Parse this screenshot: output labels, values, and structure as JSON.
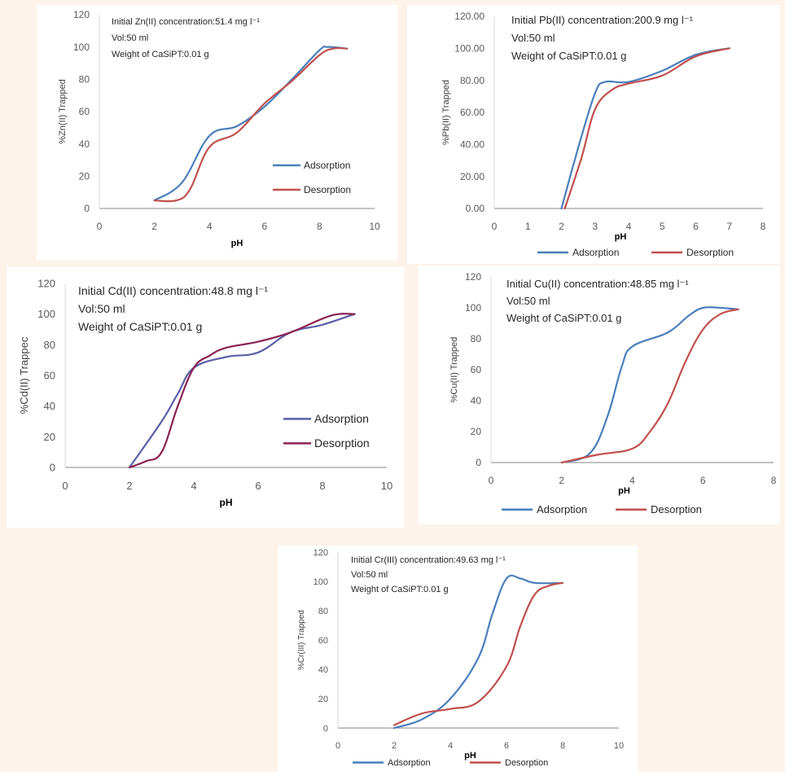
{
  "colors": {
    "background": "#fdf3ea",
    "panel": "#ffffff",
    "adsorption_blue": "#4a7ebb",
    "desorption_red": "#c0504d",
    "adsorption_purple": "#5b5ea6",
    "desorption_maroon": "#8b2252"
  },
  "chart_data": [
    {
      "type": "line",
      "notes": [
        "Initial Zn(II) concentration:51.4 mg l⁻¹",
        "Vol:50 ml",
        "Weight of CaSiPT:0.01 g"
      ],
      "xlabel": "pH",
      "ylabel": "%Zn(II) Trapped",
      "xlim": [
        0,
        10
      ],
      "ylim": [
        0,
        120
      ],
      "xticks": [
        "0",
        "2",
        "4",
        "6",
        "8",
        "10"
      ],
      "yticks": [
        "0",
        "20",
        "40",
        "60",
        "80",
        "100",
        "120"
      ],
      "grid": false,
      "legend_position": "inside-right",
      "series": [
        {
          "name": "Adsorption",
          "color": "#4a7ebb",
          "x": [
            2,
            3,
            4,
            5,
            6,
            7,
            8,
            8.3,
            9
          ],
          "y": [
            5,
            16,
            45,
            51,
            63,
            80,
            98,
            100,
            99
          ]
        },
        {
          "name": "Desorption",
          "color": "#c0504d",
          "x": [
            2,
            2.8,
            3.3,
            4,
            5,
            6,
            7,
            8,
            8.5,
            9
          ],
          "y": [
            5,
            5,
            12,
            38,
            47,
            65,
            79,
            95,
            99,
            99
          ]
        }
      ]
    },
    {
      "type": "line",
      "notes": [
        "Initial Pb(II) concentration:200.9 mg l⁻¹",
        "Vol:50 ml",
        "Weight of CaSiPT:0.01 g"
      ],
      "xlabel": "pH",
      "ylabel": "%Pb(II) Trapped",
      "xlim": [
        0,
        8
      ],
      "ylim": [
        0,
        120
      ],
      "xticks": [
        "0",
        "1",
        "2",
        "3",
        "4",
        "5",
        "6",
        "7",
        "8"
      ],
      "yticks": [
        "0.00",
        "20.00",
        "40.00",
        "60.00",
        "80.00",
        "100.00",
        "120.00"
      ],
      "grid": false,
      "legend_position": "bottom",
      "series": [
        {
          "name": "Adsorption",
          "color": "#4a7ebb",
          "x": [
            2,
            2.5,
            3,
            3.3,
            4,
            5,
            6,
            7
          ],
          "y": [
            0,
            38,
            72,
            79,
            79,
            86,
            96,
            100
          ]
        },
        {
          "name": "Desorption",
          "color": "#c0504d",
          "x": [
            2.1,
            2.6,
            3,
            3.5,
            4,
            5,
            6,
            7
          ],
          "y": [
            0,
            32,
            62,
            74,
            78,
            83,
            95,
            100
          ]
        }
      ]
    },
    {
      "type": "line",
      "notes": [
        "Initial Cd(II) concentration:48.8 mg l⁻¹",
        "Vol:50 ml",
        "Weight of CaSiPT:0.01 g"
      ],
      "xlabel": "pH",
      "ylabel": "%Cd(II) Trappec",
      "xlim": [
        0,
        10
      ],
      "ylim": [
        0,
        120
      ],
      "xticks": [
        "0",
        "2",
        "4",
        "6",
        "8",
        "10"
      ],
      "yticks": [
        "0",
        "20",
        "40",
        "60",
        "80",
        "100",
        "120"
      ],
      "grid": false,
      "legend_position": "inside-right",
      "series": [
        {
          "name": "Adsorption",
          "color": "#5b5ea6",
          "x": [
            2,
            3,
            3.5,
            4,
            5,
            6,
            7,
            8,
            9
          ],
          "y": [
            0,
            30,
            48,
            65,
            72,
            75,
            88,
            93,
            100
          ]
        },
        {
          "name": "Desorption",
          "color": "#8b2252",
          "x": [
            2,
            2.5,
            3,
            3.5,
            4,
            4.5,
            5,
            6,
            7,
            8,
            8.5,
            9
          ],
          "y": [
            0,
            4,
            10,
            40,
            65,
            73,
            78,
            82,
            88,
            97,
            100,
            100
          ]
        }
      ]
    },
    {
      "type": "line",
      "notes": [
        "Initial Cu(II) concentration:48.85 mg l⁻¹",
        "Vol:50 ml",
        "Weight of CaSiPT:0.01 g"
      ],
      "xlabel": "pH",
      "ylabel": "%Cu(II) Trapped",
      "xlim": [
        0,
        8
      ],
      "ylim": [
        0,
        120
      ],
      "xticks": [
        "0",
        "2",
        "4",
        "6",
        "8"
      ],
      "yticks": [
        "0",
        "20",
        "40",
        "60",
        "80",
        "100",
        "120"
      ],
      "grid": false,
      "legend_position": "bottom",
      "series": [
        {
          "name": "Adsorption",
          "color": "#4a7ebb",
          "x": [
            2,
            2.8,
            3.3,
            3.7,
            4,
            5,
            5.6,
            6,
            6.5,
            7
          ],
          "y": [
            0,
            6,
            30,
            62,
            75,
            84,
            95,
            100,
            100,
            99
          ]
        },
        {
          "name": "Desorption",
          "color": "#c0504d",
          "x": [
            2,
            3,
            4,
            4.5,
            5,
            5.5,
            6,
            6.5,
            7
          ],
          "y": [
            0,
            5,
            9,
            20,
            38,
            65,
            86,
            96,
            99
          ]
        }
      ]
    },
    {
      "type": "line",
      "notes": [
        "Initial Cr(III) concentration:49.63 mg l⁻¹",
        "Vol:50 ml",
        "Weight of CaSiPT:0.01 g"
      ],
      "xlabel": "pH",
      "ylabel": "%Cr(III) Trapped",
      "xlim": [
        0,
        10
      ],
      "ylim": [
        0,
        120
      ],
      "xticks": [
        "0",
        "2",
        "4",
        "6",
        "8",
        "10"
      ],
      "yticks": [
        "0",
        "20",
        "40",
        "60",
        "80",
        "100",
        "120"
      ],
      "grid": false,
      "legend_position": "bottom",
      "series": [
        {
          "name": "Adsorption",
          "color": "#4a7ebb",
          "x": [
            2,
            3,
            4,
            5,
            5.5,
            6,
            6.5,
            7,
            8
          ],
          "y": [
            0,
            6,
            20,
            48,
            78,
            102,
            102,
            99,
            99
          ]
        },
        {
          "name": "Desorption",
          "color": "#c0504d",
          "x": [
            2,
            3,
            4,
            5,
            6,
            6.5,
            7,
            7.5,
            8
          ],
          "y": [
            2,
            10,
            13,
            18,
            42,
            70,
            91,
            97,
            99
          ]
        }
      ]
    }
  ]
}
